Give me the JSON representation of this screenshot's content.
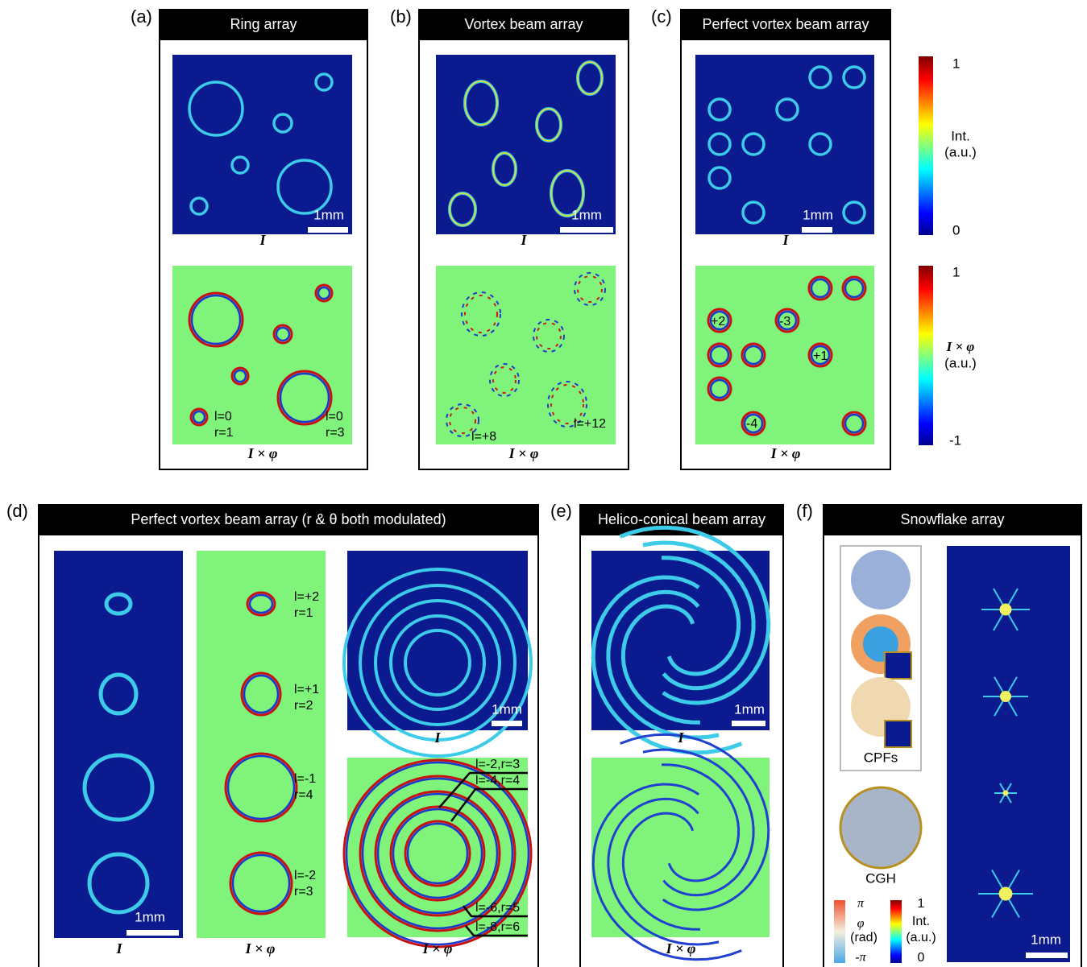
{
  "panel_a": {
    "letter": "(a)",
    "title": "Ring array",
    "scale_bar": "1mm",
    "caption_top": "I",
    "caption_bottom": "I × φ",
    "labels": [
      "l=0",
      "r=1",
      "l=0",
      "r=3"
    ]
  },
  "panel_b": {
    "letter": "(b)",
    "title": "Vortex beam array",
    "scale_bar": "1mm",
    "caption_top": "I",
    "caption_bottom": "I × φ",
    "labels": [
      "l=+8",
      "l=+12"
    ]
  },
  "panel_c": {
    "letter": "(c)",
    "title": "Perfect vortex beam array",
    "scale_bar": "1mm",
    "caption_top": "I",
    "caption_bottom": "I × φ",
    "labels": [
      "+2",
      "-3",
      "+1",
      "-4"
    ]
  },
  "colorbar_intensity": {
    "max": "1",
    "min": "0",
    "label": "Int.",
    "unit": "(a.u.)"
  },
  "colorbar_phase": {
    "max": "1",
    "min": "-1",
    "label": "I × φ",
    "unit": "(a.u.)"
  },
  "panel_d": {
    "letter": "(d)",
    "title": "Perfect vortex beam array (r & θ both modulated)",
    "scale_bars": [
      "1mm",
      "1mm"
    ],
    "captions": [
      "I",
      "I × φ",
      "I",
      "I × φ"
    ],
    "labels": [
      "l=+2",
      "r=1",
      "l=+1",
      "r=2",
      "l=-1",
      "r=4",
      "l=-2",
      "r=3",
      "l=-2,r=3",
      "l=-4,r=4",
      "l=-6,r=5",
      "l=-8,r=6"
    ]
  },
  "panel_e": {
    "letter": "(e)",
    "title": "Helico-conical beam array",
    "scale_bar": "1mm",
    "captions": [
      "I",
      "I × φ"
    ]
  },
  "panel_f": {
    "letter": "(f)",
    "title": "Snowflake array",
    "filter_label": "CPFs",
    "hologram_label": "CGH",
    "phase_colorbar": {
      "max": "π",
      "label": "φ",
      "unit": "(rad)",
      "min": "-π"
    },
    "intensity_colorbar": {
      "max": "1",
      "label": "Int.",
      "unit": "(a.u.)",
      "min": "0"
    },
    "scale_bar": "1mm"
  }
}
